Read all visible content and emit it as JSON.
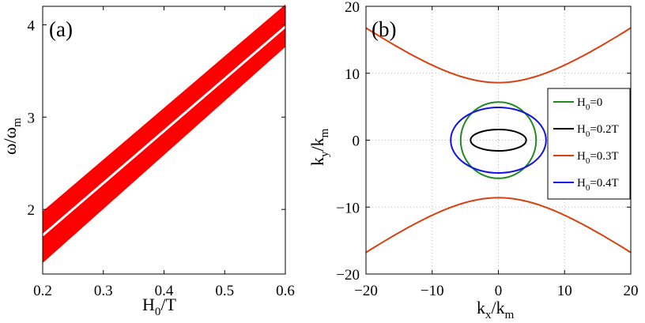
{
  "chart_data": [
    {
      "panel_label": "(a)",
      "type": "area",
      "xlabel": {
        "main": "H",
        "sub": "0",
        "suffix": "/T"
      },
      "ylabel": {
        "main": "ω/ω",
        "sub": "m"
      },
      "xlim": [
        0.2,
        0.6
      ],
      "ylim": [
        1.3,
        4.2
      ],
      "xticks": [
        "0.2",
        "0.3",
        "0.4",
        "0.5",
        "0.6"
      ],
      "yticks": [
        "2",
        "3",
        "4"
      ],
      "band": {
        "x": [
          0.2,
          0.6
        ],
        "lower": [
          1.42,
          3.76
        ],
        "upper": [
          1.98,
          4.22
        ],
        "color": "#ff0000"
      },
      "center_line": {
        "x": [
          0.2,
          0.6
        ],
        "y": [
          1.72,
          3.98
        ],
        "color": "#ffffff"
      }
    },
    {
      "panel_label": "(b)",
      "type": "line",
      "xlabel": {
        "main": "k",
        "sub": "x",
        "mid": "/k",
        "sub2": "m"
      },
      "ylabel": {
        "main": "k",
        "sub": "y",
        "mid": "/k",
        "sub2": "m"
      },
      "xlim": [
        -20,
        20
      ],
      "ylim": [
        -20,
        20
      ],
      "xticks": [
        "−20",
        "−10",
        "0",
        "10",
        "20"
      ],
      "yticks": [
        "20",
        "10",
        "0",
        "−10",
        "−20"
      ],
      "grid": true,
      "series": [
        {
          "name": "H0=0",
          "label_main": "H",
          "label_sub": "0",
          "label_rest": "=0",
          "shape": "ellipse",
          "a": 5.7,
          "b": 5.7,
          "color": "#1f8a1f"
        },
        {
          "name": "H0=0.2T",
          "label_main": "H",
          "label_sub": "0",
          "label_rest": "=0.2T",
          "shape": "ellipse",
          "a": 4.2,
          "b": 1.6,
          "color": "#000000"
        },
        {
          "name": "H0=0.3T",
          "label_main": "H",
          "label_sub": "0",
          "label_rest": "=0.3T",
          "shape": "hyperbola",
          "a": 8.6,
          "slope": 0.72,
          "color": "#d9400f"
        },
        {
          "name": "H0=0.4T",
          "label_main": "H",
          "label_sub": "0",
          "label_rest": "=0.4T",
          "shape": "ellipse",
          "a": 7.2,
          "b": 4.9,
          "color": "#1414e6"
        }
      ],
      "legend_position": "right"
    }
  ]
}
